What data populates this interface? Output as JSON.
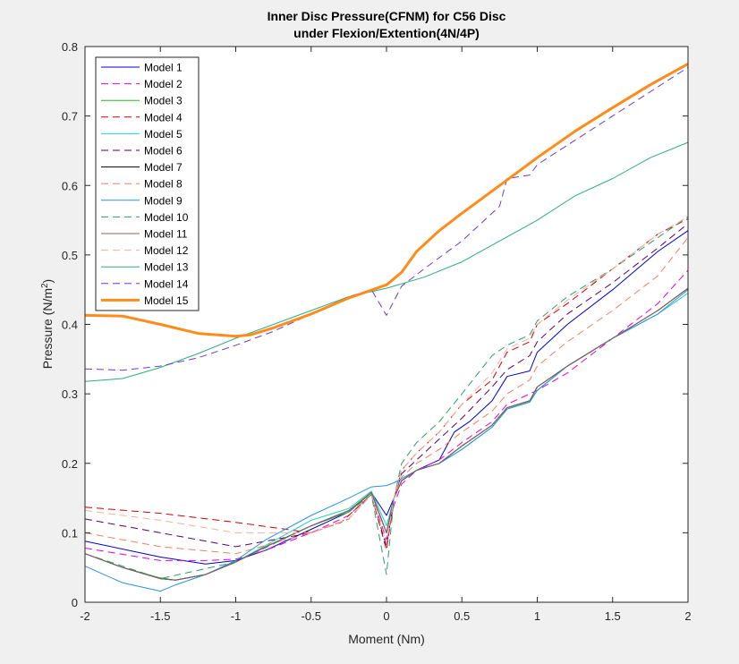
{
  "chart_data": {
    "type": "line",
    "title_line1": "Inner Disc Pressure(CFNM) for C56 Disc",
    "title_line2": "under Flexion/Extention(4N/4P)",
    "xlabel": "Moment (Nm)",
    "ylabel_main": "Pressure (N/m",
    "ylabel_sup": "2",
    "ylabel_end": ")",
    "xlim": [
      -2,
      2
    ],
    "ylim": [
      0,
      0.8
    ],
    "xticks": [
      -2,
      -1.5,
      -1,
      -0.5,
      0,
      0.5,
      1,
      1.5,
      2
    ],
    "xtick_labels": [
      "-2",
      "-1.5",
      "-1",
      "-0.5",
      "0",
      "0.5",
      "1",
      "1.5",
      "2"
    ],
    "yticks": [
      0,
      0.1,
      0.2,
      0.3,
      0.4,
      0.5,
      0.6,
      0.7,
      0.8
    ],
    "ytick_labels": [
      "0",
      "0.1",
      "0.2",
      "0.3",
      "0.4",
      "0.5",
      "0.6",
      "0.7",
      "0.8"
    ],
    "grid": false,
    "legend_position": "top-left",
    "series": [
      {
        "name": "Model 1",
        "color": "#0000cc",
        "dash": "solid",
        "width": 1,
        "x": [
          -2,
          -1.5,
          -1.2,
          -1,
          -0.8,
          -0.5,
          -0.25,
          -0.1,
          0,
          0.05,
          0.1,
          0.2,
          0.35,
          0.45,
          0.55,
          0.7,
          0.8,
          0.95,
          1,
          1.2,
          1.5,
          1.8,
          2
        ],
        "y": [
          0.088,
          0.065,
          0.055,
          0.06,
          0.075,
          0.105,
          0.13,
          0.158,
          0.125,
          0.15,
          0.175,
          0.19,
          0.205,
          0.245,
          0.26,
          0.29,
          0.325,
          0.333,
          0.36,
          0.4,
          0.45,
          0.505,
          0.535
        ]
      },
      {
        "name": "Model 2",
        "color": "#e000e0",
        "dash": "dash",
        "width": 1,
        "x": [
          -2,
          -1.5,
          -1.2,
          -1,
          -0.8,
          -0.5,
          -0.25,
          -0.1,
          0,
          0.05,
          0.1,
          0.2,
          0.35,
          0.5,
          0.7,
          0.8,
          0.95,
          1,
          1.2,
          1.5,
          1.8,
          2
        ],
        "y": [
          0.078,
          0.06,
          0.06,
          0.062,
          0.075,
          0.1,
          0.125,
          0.155,
          0.09,
          0.14,
          0.17,
          0.19,
          0.205,
          0.23,
          0.26,
          0.285,
          0.3,
          0.305,
          0.33,
          0.38,
          0.43,
          0.478
        ]
      },
      {
        "name": "Model 3",
        "color": "#22bb22",
        "dash": "solid",
        "width": 1,
        "x": [
          -2,
          -1.75,
          -1.5,
          -1.4,
          -1.2,
          -1,
          -0.8,
          -0.5,
          -0.25,
          -0.1,
          0,
          0.05,
          0.1,
          0.2,
          0.35,
          0.5,
          0.7,
          0.8,
          0.95,
          1,
          1.2,
          1.5,
          1.8,
          2
        ],
        "y": [
          0.07,
          0.05,
          0.035,
          0.032,
          0.04,
          0.058,
          0.08,
          0.11,
          0.13,
          0.158,
          0.1,
          0.15,
          0.175,
          0.19,
          0.2,
          0.225,
          0.255,
          0.28,
          0.29,
          0.31,
          0.34,
          0.38,
          0.42,
          0.452
        ]
      },
      {
        "name": "Model 4",
        "color": "#cc0000",
        "dash": "dash",
        "width": 1,
        "x": [
          -2,
          -1.5,
          -1,
          -0.5,
          -0.3,
          -0.1,
          0,
          0.05,
          0.1,
          0.2,
          0.35,
          0.5,
          0.7,
          0.8,
          0.95,
          1,
          1.2,
          1.5,
          1.8,
          2
        ],
        "y": [
          0.137,
          0.128,
          0.115,
          0.1,
          0.115,
          0.155,
          0.075,
          0.15,
          0.19,
          0.215,
          0.245,
          0.285,
          0.32,
          0.36,
          0.375,
          0.4,
          0.43,
          0.48,
          0.53,
          0.552
        ]
      },
      {
        "name": "Model 5",
        "color": "#22cccc",
        "dash": "solid",
        "width": 1,
        "x": [
          -2,
          -1.75,
          -1.5,
          -1.4,
          -1.2,
          -1,
          -0.8,
          -0.5,
          -0.25,
          -0.1,
          0,
          0.05,
          0.1,
          0.2,
          0.35,
          0.5,
          0.7,
          0.8,
          0.95,
          1,
          1.2,
          1.5,
          1.8,
          2
        ],
        "y": [
          0.07,
          0.05,
          0.034,
          0.032,
          0.04,
          0.058,
          0.082,
          0.118,
          0.135,
          0.16,
          0.11,
          0.15,
          0.175,
          0.19,
          0.2,
          0.22,
          0.252,
          0.278,
          0.288,
          0.305,
          0.34,
          0.38,
          0.415,
          0.445
        ]
      },
      {
        "name": "Model 6",
        "color": "#55006a",
        "dash": "dash",
        "width": 1,
        "x": [
          -2,
          -1.5,
          -1,
          -0.5,
          -0.25,
          -0.1,
          0,
          0.05,
          0.1,
          0.2,
          0.35,
          0.5,
          0.7,
          0.8,
          0.95,
          1,
          1.2,
          1.5,
          1.8,
          2
        ],
        "y": [
          0.12,
          0.1,
          0.08,
          0.1,
          0.12,
          0.155,
          0.08,
          0.15,
          0.185,
          0.205,
          0.235,
          0.265,
          0.31,
          0.335,
          0.355,
          0.375,
          0.415,
          0.46,
          0.51,
          0.545
        ]
      },
      {
        "name": "Model 7",
        "color": "#000000",
        "dash": "solid",
        "width": 1,
        "x": [
          -2,
          -1.75,
          -1.5,
          -1.4,
          -1.2,
          -1,
          -0.8,
          -0.5,
          -0.25,
          -0.1,
          0,
          0.05,
          0.1,
          0.2,
          0.35,
          0.5,
          0.7,
          0.8,
          0.95,
          1,
          1.2,
          1.5,
          1.8,
          2
        ],
        "y": [
          0.07,
          0.05,
          0.034,
          0.032,
          0.04,
          0.058,
          0.08,
          0.11,
          0.132,
          0.158,
          0.1,
          0.15,
          0.175,
          0.19,
          0.2,
          0.225,
          0.255,
          0.28,
          0.29,
          0.31,
          0.34,
          0.38,
          0.42,
          0.452
        ]
      },
      {
        "name": "Model 8",
        "color": "#f08060",
        "dash": "dash",
        "width": 1,
        "x": [
          -2,
          -1.5,
          -1,
          -0.5,
          -0.25,
          -0.1,
          0,
          0.05,
          0.1,
          0.2,
          0.35,
          0.5,
          0.7,
          0.8,
          0.95,
          1,
          1.2,
          1.5,
          1.8,
          2
        ],
        "y": [
          0.1,
          0.08,
          0.07,
          0.1,
          0.12,
          0.155,
          0.085,
          0.15,
          0.18,
          0.2,
          0.22,
          0.245,
          0.275,
          0.3,
          0.32,
          0.34,
          0.375,
          0.42,
          0.47,
          0.525
        ]
      },
      {
        "name": "Model 9",
        "color": "#2a90dd",
        "dash": "solid",
        "width": 1,
        "x": [
          -2,
          -1.75,
          -1.5,
          -1.4,
          -1.2,
          -1,
          -0.8,
          -0.5,
          -0.25,
          -0.1,
          0,
          0.05,
          0.1,
          0.2,
          0.35,
          0.5,
          0.7,
          0.8,
          0.95,
          1,
          1.2,
          1.5,
          1.8,
          2
        ],
        "y": [
          0.052,
          0.028,
          0.016,
          0.025,
          0.04,
          0.06,
          0.09,
          0.125,
          0.15,
          0.166,
          0.168,
          0.172,
          0.178,
          0.19,
          0.2,
          0.22,
          0.252,
          0.278,
          0.288,
          0.305,
          0.34,
          0.38,
          0.415,
          0.45
        ]
      },
      {
        "name": "Model 10",
        "color": "#2a9e66",
        "dash": "dash",
        "width": 1,
        "x": [
          -2,
          -1.5,
          -1,
          -0.5,
          -0.25,
          -0.1,
          0,
          0.05,
          0.1,
          0.2,
          0.35,
          0.5,
          0.7,
          0.8,
          0.95,
          1,
          1.2,
          1.5,
          1.8,
          2
        ],
        "y": [
          0.07,
          0.034,
          0.058,
          0.11,
          0.13,
          0.155,
          0.04,
          0.15,
          0.2,
          0.23,
          0.26,
          0.3,
          0.355,
          0.37,
          0.385,
          0.405,
          0.44,
          0.48,
          0.525,
          0.555
        ]
      },
      {
        "name": "Model 11",
        "color": "#8b5f5f",
        "dash": "solid",
        "width": 1,
        "x": [
          -2,
          -1.75,
          -1.5,
          -1.4,
          -1.2,
          -1,
          -0.8,
          -0.5,
          -0.25,
          -0.1,
          0,
          0.05,
          0.1,
          0.2,
          0.35,
          0.5,
          0.7,
          0.8,
          0.95,
          1,
          1.2,
          1.5,
          1.8,
          2
        ],
        "y": [
          0.07,
          0.05,
          0.034,
          0.032,
          0.04,
          0.058,
          0.08,
          0.11,
          0.132,
          0.158,
          0.1,
          0.15,
          0.175,
          0.19,
          0.2,
          0.225,
          0.255,
          0.28,
          0.29,
          0.31,
          0.34,
          0.38,
          0.42,
          0.452
        ]
      },
      {
        "name": "Model 12",
        "color": "#f6b0a0",
        "dash": "dash",
        "width": 1,
        "x": [
          -2,
          -1.5,
          -1,
          -0.5,
          -0.25,
          -0.1,
          0,
          0.05,
          0.1,
          0.2,
          0.35,
          0.5,
          0.7,
          0.8,
          0.95,
          1,
          1.2,
          1.5,
          1.8,
          2
        ],
        "y": [
          0.132,
          0.118,
          0.1,
          0.1,
          0.12,
          0.155,
          0.085,
          0.15,
          0.19,
          0.215,
          0.245,
          0.285,
          0.33,
          0.365,
          0.38,
          0.4,
          0.435,
          0.48,
          0.53,
          0.555
        ]
      },
      {
        "name": "Model 13",
        "color": "#2aae7a",
        "dash": "solid",
        "width": 1,
        "x": [
          -2,
          -1.75,
          -1.5,
          -1.25,
          -1,
          -0.75,
          -0.5,
          -0.25,
          0,
          0.25,
          0.5,
          0.75,
          1,
          1.25,
          1.5,
          1.75,
          2
        ],
        "y": [
          0.318,
          0.322,
          0.338,
          0.358,
          0.38,
          0.4,
          0.42,
          0.44,
          0.452,
          0.468,
          0.49,
          0.52,
          0.55,
          0.585,
          0.61,
          0.64,
          0.662
        ]
      },
      {
        "name": "Model 14",
        "color": "#6a3ad0",
        "dash": "dash",
        "width": 1,
        "x": [
          -2,
          -1.75,
          -1.5,
          -1.25,
          -1,
          -0.75,
          -0.5,
          -0.25,
          -0.1,
          0,
          0.1,
          0.25,
          0.5,
          0.75,
          0.8,
          0.95,
          1,
          1.25,
          1.5,
          1.75,
          2
        ],
        "y": [
          0.336,
          0.334,
          0.34,
          0.352,
          0.37,
          0.39,
          0.415,
          0.44,
          0.45,
          0.413,
          0.455,
          0.48,
          0.52,
          0.57,
          0.61,
          0.615,
          0.63,
          0.665,
          0.7,
          0.735,
          0.77
        ]
      },
      {
        "name": "Model 15",
        "color": "#ff8c1a",
        "dash": "solid",
        "width": 3,
        "x": [
          -2,
          -1.75,
          -1.5,
          -1.25,
          -1,
          -0.9,
          -0.75,
          -0.5,
          -0.25,
          0,
          0.1,
          0.2,
          0.35,
          0.5,
          0.75,
          1,
          1.25,
          1.5,
          1.75,
          2
        ],
        "y": [
          0.413,
          0.412,
          0.4,
          0.387,
          0.383,
          0.385,
          0.395,
          0.415,
          0.438,
          0.457,
          0.475,
          0.505,
          0.535,
          0.56,
          0.6,
          0.64,
          0.678,
          0.712,
          0.745,
          0.775
        ]
      }
    ]
  }
}
